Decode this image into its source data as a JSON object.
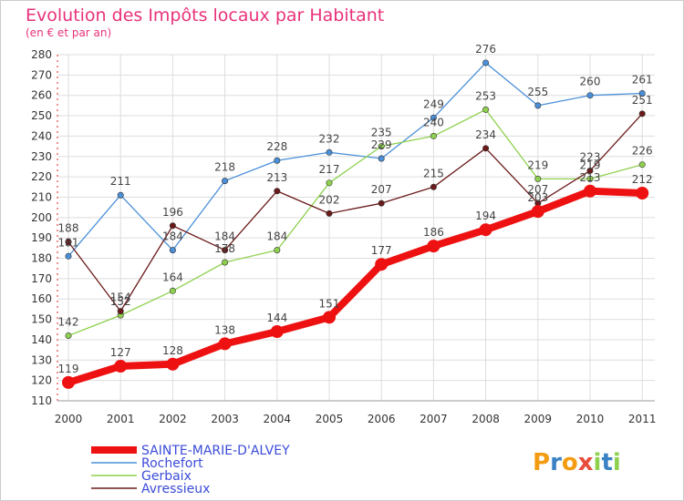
{
  "chart_data": {
    "type": "line",
    "title": "Evolution des Impôts locaux par Habitant",
    "subtitle": "(en € et par an)",
    "xlabel": "",
    "ylabel": "",
    "ylim": [
      110,
      280
    ],
    "yticks": [
      110,
      120,
      130,
      140,
      150,
      160,
      170,
      180,
      190,
      200,
      210,
      220,
      230,
      240,
      250,
      260,
      270,
      280
    ],
    "grid": true,
    "legend_position": "bottom-left",
    "x": [
      "2000",
      "2001",
      "2002",
      "2003",
      "2004",
      "2005",
      "2006",
      "2007",
      "2008",
      "2009",
      "2010",
      "2011"
    ],
    "series": [
      {
        "name": "Rochefort",
        "color": "#4a90d9",
        "values": [
          181,
          211,
          184,
          218,
          228,
          232,
          229,
          249,
          276,
          255,
          260,
          261
        ]
      },
      {
        "name": "Gerbaix",
        "color": "#8fd14f",
        "values": [
          142,
          152,
          164,
          178,
          184,
          217,
          235,
          240,
          253,
          219,
          219,
          226
        ]
      },
      {
        "name": "Avressieux",
        "color": "#6b1a1a",
        "values": [
          188,
          154,
          196,
          184,
          213,
          202,
          207,
          215,
          234,
          207,
          223,
          251
        ]
      },
      {
        "name": "SAINTE-MARIE-D'ALVEY",
        "color": "#ee1111",
        "values": [
          119,
          127,
          128,
          138,
          144,
          151,
          177,
          186,
          194,
          203,
          213,
          212
        ]
      }
    ],
    "data_labels": [
      {
        "series": 0,
        "labels": [
          "181",
          "211",
          "184",
          "218",
          "228",
          "232",
          "229",
          "249",
          "276",
          "255",
          "260",
          "261"
        ]
      },
      {
        "series": 1,
        "labels": [
          "142",
          "152",
          "164",
          "178",
          "184",
          "217",
          "235",
          "240",
          "253",
          "219",
          "219",
          "226"
        ]
      },
      {
        "series": 2,
        "labels": [
          "188",
          "154",
          "196",
          "184",
          "213",
          "202",
          "207",
          "215",
          "234",
          "207",
          "223",
          "251"
        ]
      },
      {
        "series": 3,
        "labels": [
          "119",
          "127",
          "128",
          "138",
          "144",
          "151",
          "177",
          "186",
          "194",
          "203",
          "213",
          "212"
        ]
      }
    ],
    "legend": [
      "SAINTE-MARIE-D'ALVEY",
      "Rochefort",
      "Gerbaix",
      "Avressieux"
    ]
  },
  "brand": {
    "logo_letters": [
      "P",
      "r",
      "o",
      "x",
      "i",
      "t",
      "i"
    ],
    "logo_colors": [
      "#f39c12",
      "#3b82c4",
      "#f39c12",
      "#e74c3c",
      "#8fd14f",
      "#3b82c4",
      "#8fd14f"
    ]
  }
}
